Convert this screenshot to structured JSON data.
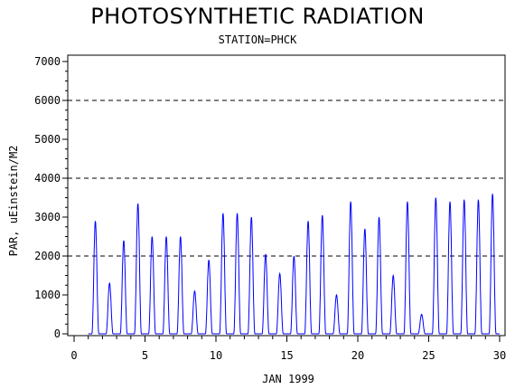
{
  "chart_data": {
    "type": "line",
    "title": "PHOTOSYNTHETIC RADIATION",
    "subtitle": "STATION=PHCK",
    "xlabel": "JAN 1999",
    "ylabel": "PAR, uEinstein/M2",
    "xlim": [
      0,
      30
    ],
    "ylim": [
      0,
      7000
    ],
    "x_ticks": [
      0,
      5,
      10,
      15,
      20,
      25,
      30
    ],
    "y_ticks": [
      0,
      1000,
      2000,
      3000,
      4000,
      5000,
      6000,
      7000
    ],
    "reference_lines": [
      2000,
      4000,
      6000
    ],
    "line_color": "#0000ff",
    "daily_peaks": [
      {
        "day": 1,
        "peak": 2900
      },
      {
        "day": 2,
        "peak": 1300
      },
      {
        "day": 3,
        "peak": 2400
      },
      {
        "day": 4,
        "peak": 3350
      },
      {
        "day": 5,
        "peak": 2500
      },
      {
        "day": 6,
        "peak": 2500
      },
      {
        "day": 7,
        "peak": 2500
      },
      {
        "day": 8,
        "peak": 1100
      },
      {
        "day": 9,
        "peak": 1900
      },
      {
        "day": 10,
        "peak": 3100
      },
      {
        "day": 11,
        "peak": 3100
      },
      {
        "day": 12,
        "peak": 3000
      },
      {
        "day": 13,
        "peak": 2050
      },
      {
        "day": 14,
        "peak": 1550
      },
      {
        "day": 15,
        "peak": 2000
      },
      {
        "day": 16,
        "peak": 2900
      },
      {
        "day": 17,
        "peak": 3050
      },
      {
        "day": 18,
        "peak": 1000
      },
      {
        "day": 19,
        "peak": 3400
      },
      {
        "day": 20,
        "peak": 2700
      },
      {
        "day": 21,
        "peak": 3000
      },
      {
        "day": 22,
        "peak": 1500
      },
      {
        "day": 23,
        "peak": 3400
      },
      {
        "day": 24,
        "peak": 500
      },
      {
        "day": 25,
        "peak": 3500
      },
      {
        "day": 26,
        "peak": 3400
      },
      {
        "day": 27,
        "peak": 3450
      },
      {
        "day": 28,
        "peak": 3450
      },
      {
        "day": 29,
        "peak": 3600
      }
    ]
  }
}
